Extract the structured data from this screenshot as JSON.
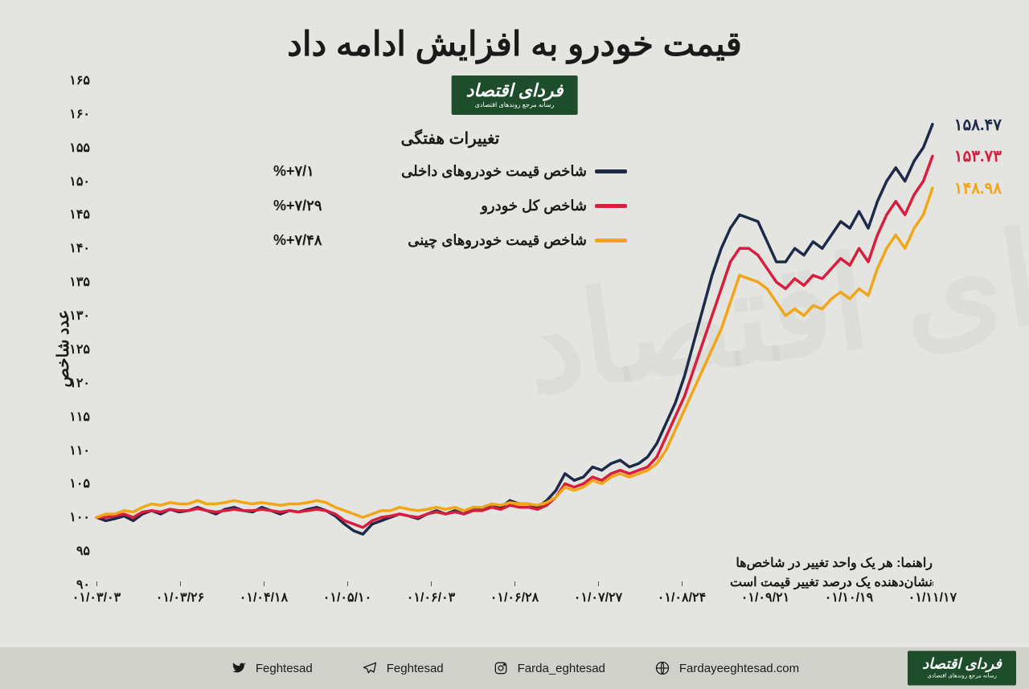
{
  "title": "قیمت خودرو به افزایش ادامه داد",
  "logo": {
    "main": "فردای اقتصاد",
    "sub": "رسانه مرجع روندهای اقتصادی"
  },
  "chart": {
    "type": "line",
    "background_color": "#e4e5e0",
    "title_fontsize": 42,
    "ylabel": "عدد شاخص",
    "label_fontsize": 20,
    "ylim": [
      90,
      165
    ],
    "ytick_step": 5,
    "yticks": [
      "۹۰",
      "۹۵",
      "۱۰۰",
      "۱۰۵",
      "۱۱۰",
      "۱۱۵",
      "۱۲۰",
      "۱۲۵",
      "۱۳۰",
      "۱۳۵",
      "۱۴۰",
      "۱۴۵",
      "۱۵۰",
      "۱۵۵",
      "۱۶۰",
      "۱۶۵"
    ],
    "xtick_labels": [
      "۰۱/۰۳/۰۳",
      "۰۱/۰۳/۲۶",
      "۰۱/۰۴/۱۸",
      "۰۱/۰۵/۱۰",
      "۰۱/۰۶/۰۳",
      "۰۱/۰۶/۲۸",
      "۰۱/۰۷/۲۷",
      "۰۱/۰۸/۲۴",
      "۰۱/۰۹/۲۱",
      "۰۱/۱۰/۱۹",
      "۰۱/۱۱/۱۷"
    ],
    "xtick_positions": [
      0.0,
      0.1,
      0.2,
      0.3,
      0.4,
      0.5,
      0.6,
      0.7,
      0.8,
      0.9,
      1.0
    ],
    "line_width": 3.5,
    "series": [
      {
        "id": "domestic",
        "name": "شاخص قیمت خودروهای داخلی",
        "color": "#1e2a4a",
        "weekly_change": "%+۷/۱",
        "end_value_label": "۱۵۸.۴۷",
        "end_value": 158.47,
        "data": [
          100,
          99.5,
          99.8,
          100.2,
          99.5,
          100.5,
          101,
          100.5,
          101.2,
          100.8,
          101,
          101.5,
          101,
          100.5,
          101.2,
          101.5,
          101,
          100.8,
          101.5,
          101,
          100.5,
          101,
          100.8,
          101.2,
          101.5,
          101,
          100.2,
          99,
          98,
          97.5,
          99,
          99.5,
          100,
          100.5,
          100.2,
          99.8,
          100.5,
          101,
          100.5,
          101,
          100.5,
          101.5,
          101,
          102,
          101.5,
          102.5,
          102,
          102,
          101.5,
          102.5,
          104,
          106.5,
          105.5,
          106,
          107.5,
          107,
          108,
          108.5,
          107.5,
          108,
          109,
          111,
          114,
          117,
          121,
          126,
          131,
          136,
          140,
          143,
          145,
          144.5,
          144,
          141,
          138,
          138,
          140,
          139,
          141,
          140,
          142,
          144,
          143,
          145.5,
          143,
          147,
          150,
          152,
          150,
          153,
          155,
          158.47
        ]
      },
      {
        "id": "total",
        "name": "شاخص کل خودرو",
        "color": "#d81e3e",
        "weekly_change": "%+۷/۲۹",
        "end_value_label": "۱۵۳.۷۳",
        "end_value": 153.73,
        "data": [
          100,
          100,
          100.2,
          100.5,
          100,
          100.8,
          101,
          100.8,
          101.2,
          101,
          101,
          101.3,
          101,
          100.8,
          101,
          101.2,
          101,
          101,
          101.2,
          101,
          100.8,
          101,
          100.8,
          101,
          101.2,
          101,
          100.5,
          99.5,
          99,
          98.5,
          99.5,
          100,
          100.2,
          100.5,
          100.2,
          100,
          100.5,
          100.8,
          100.5,
          100.8,
          100.5,
          101,
          101,
          101.5,
          101.2,
          101.8,
          101.5,
          101.5,
          101.2,
          101.8,
          103,
          105,
          104.5,
          105,
          106,
          105.5,
          106.5,
          107,
          106.5,
          107,
          107.5,
          109,
          112,
          115,
          118,
          122,
          126,
          130,
          134,
          138,
          140,
          140,
          139,
          137,
          135,
          134,
          135.5,
          134.5,
          136,
          135.5,
          137,
          138.5,
          137.5,
          140,
          138,
          142,
          145,
          147,
          145,
          148,
          150,
          153.73
        ]
      },
      {
        "id": "chinese",
        "name": "شاخص قیمت خودروهای چینی",
        "color": "#f2a516",
        "weekly_change": "%+۷/۴۸",
        "end_value_label": "۱۴۸.۹۸",
        "end_value": 148.98,
        "data": [
          100,
          100.5,
          100.5,
          101,
          100.8,
          101.5,
          102,
          101.8,
          102.2,
          102,
          102,
          102.5,
          102,
          102,
          102.2,
          102.5,
          102.2,
          102,
          102.2,
          102,
          101.8,
          102,
          102,
          102.2,
          102.5,
          102.2,
          101.5,
          101,
          100.5,
          100,
          100.5,
          101,
          101,
          101.5,
          101.2,
          101,
          101.2,
          101.5,
          101.2,
          101.5,
          101,
          101.5,
          101.5,
          102,
          101.8,
          102.2,
          102,
          102,
          101.8,
          102.2,
          103,
          104.5,
          104,
          104.5,
          105.5,
          105,
          106,
          106.5,
          106,
          106.5,
          107,
          108,
          110,
          113,
          116,
          119,
          122,
          125,
          128,
          132,
          136,
          135.5,
          135,
          134,
          132,
          130,
          131,
          130,
          131.5,
          131,
          132.5,
          133.5,
          132.5,
          134,
          133,
          137,
          140,
          142,
          140,
          143,
          145,
          148.98
        ]
      }
    ]
  },
  "legend": {
    "header": "تغییرات هفتگی"
  },
  "note": {
    "line1": "راهنما: هر یک واحد تغییر در شاخص‌ها",
    "line2": "نشان‌دهنده یک درصد تغییر قیمت است"
  },
  "footer": {
    "socials": [
      {
        "icon": "globe",
        "text": "Fardayeeghtesad.com"
      },
      {
        "icon": "instagram",
        "text": "Farda_eghtesad"
      },
      {
        "icon": "telegram",
        "text": "Feghtesad"
      },
      {
        "icon": "twitter",
        "text": "Feghtesad"
      }
    ]
  }
}
